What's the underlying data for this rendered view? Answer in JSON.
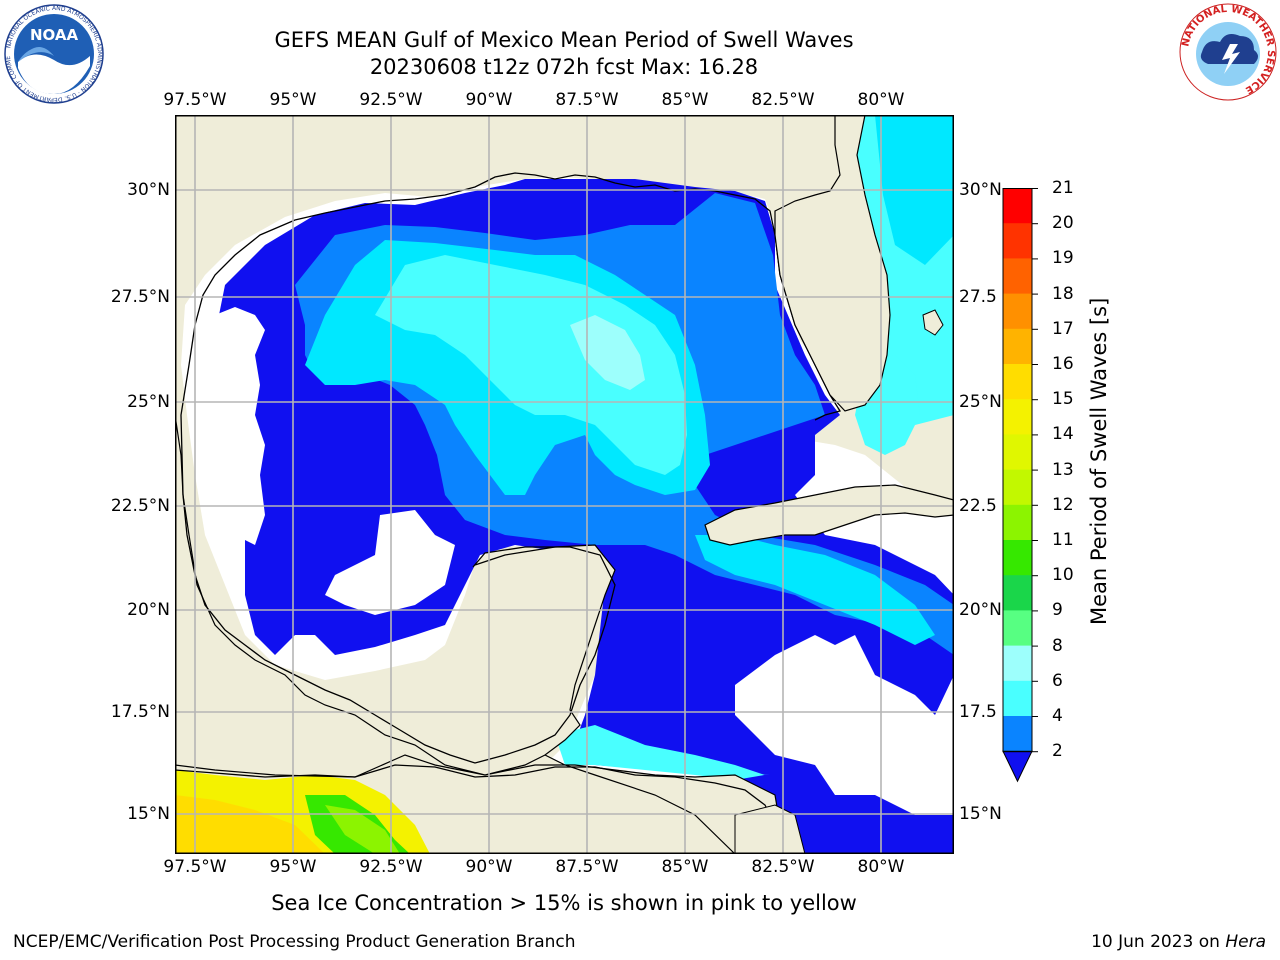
{
  "title": {
    "line1": "GEFS MEAN Gulf of Mexico Mean Period of Swell Waves",
    "line2": "20230608 t12z 072h fcst   Max: 16.28"
  },
  "logos": {
    "left": {
      "icon": "noaa-logo",
      "text": "NOAA",
      "ring_text": "NATIONAL OCEANIC AND ATMOSPHERIC ADMINISTRATION · U.S. DEPARTMENT OF COMMERCE"
    },
    "right": {
      "icon": "nws-logo",
      "ring_text": "NATIONAL WEATHER SERVICE"
    }
  },
  "map": {
    "lon_labels": [
      "97.5°W",
      "95°W",
      "92.5°W",
      "90°W",
      "87.5°W",
      "85°W",
      "82.5°W",
      "80°W"
    ],
    "lat_labels_left": [
      "30°N",
      "27.5°N",
      "25°N",
      "22.5°N",
      "20°N",
      "17.5°N",
      "15°N"
    ],
    "lat_labels_right": [
      "30°N",
      "27.5",
      "25°N",
      "22.5",
      "20°N",
      "17.5",
      "15°N"
    ],
    "colors": {
      "land": "#efedd9",
      "no_data": "#ffffff",
      "coast": "#000000",
      "grid": "#b5b5b5"
    }
  },
  "colorbar": {
    "title": "Mean Period of Swell Waves [s]",
    "labels": [
      "21",
      "20",
      "19",
      "18",
      "17",
      "16",
      "15",
      "14",
      "13",
      "12",
      "11",
      "10",
      "9",
      "8",
      "6",
      "4",
      "2"
    ],
    "colors": [
      "#ff0000",
      "#ff3300",
      "#ff6200",
      "#ff9000",
      "#ffb300",
      "#ffdd00",
      "#f4f200",
      "#e0f700",
      "#c2f800",
      "#8cf400",
      "#36e800",
      "#1ad64a",
      "#57ff82",
      "#9dfffc",
      "#49ffff",
      "#00e8ff",
      "#0a84ff"
    ],
    "under_color": "#1010f0"
  },
  "caption": "Sea Ice Concentration > 15% is shown in pink to yellow",
  "footer": {
    "left": "NCEP/EMC/Verification Post Processing Product Generation Branch",
    "right_prefix": "10 Jun 2023 on ",
    "right_host": "Hera"
  }
}
